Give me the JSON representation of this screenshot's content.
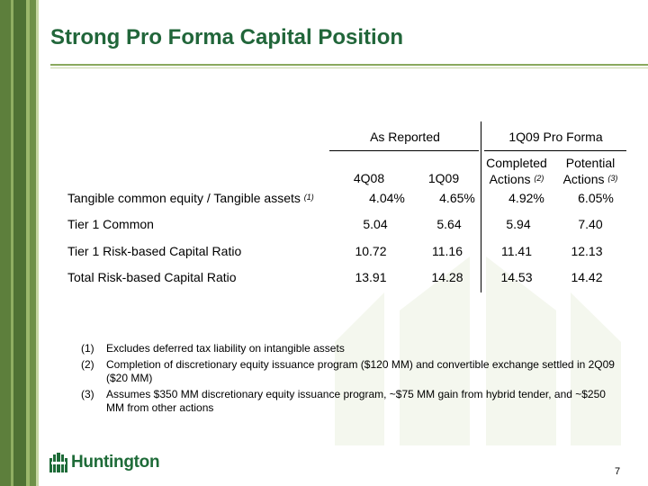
{
  "slide": {
    "title": "Strong Pro Forma Capital Position",
    "page_number": "7"
  },
  "table": {
    "group_headers": [
      "As Reported",
      "1Q09 Pro Forma"
    ],
    "columns": [
      {
        "line1": "",
        "line2": "4Q08",
        "note": ""
      },
      {
        "line1": "",
        "line2": "1Q09",
        "note": ""
      },
      {
        "line1": "Completed",
        "line2": "Actions",
        "note": "(2)"
      },
      {
        "line1": "Potential",
        "line2": "Actions",
        "note": "(3)"
      }
    ],
    "rows": [
      {
        "label": "Tangible common equity / Tangible assets",
        "note": "(1)",
        "values": [
          "4.04%",
          "4.65%",
          "4.92%",
          "6.05%"
        ]
      },
      {
        "label": "Tier 1 Common",
        "note": "",
        "values": [
          "5.04",
          "5.64",
          "5.94",
          "7.40"
        ]
      },
      {
        "label": "Tier 1 Risk-based Capital Ratio",
        "note": "",
        "values": [
          "10.72",
          "11.16",
          "11.41",
          "12.13"
        ]
      },
      {
        "label": "Total Risk-based Capital Ratio",
        "note": "",
        "values": [
          "13.91",
          "14.28",
          "14.53",
          "14.42"
        ]
      }
    ]
  },
  "footnotes": [
    {
      "num": "(1)",
      "text": "Excludes deferred tax liability on intangible assets"
    },
    {
      "num": "(2)",
      "text": "Completion of discretionary equity issuance program ($120 MM) and convertible exchange settled in 2Q09 ($20 MM)"
    },
    {
      "num": "(3)",
      "text": "Assumes $350 MM discretionary equity issuance program, ~$75 MM gain from hybrid tender, and ~$250 MM from other actions"
    }
  ],
  "logo": {
    "icon": "huntington-logo-icon",
    "text": "Huntington"
  },
  "colors": {
    "title": "#21663a",
    "brand_green": "#1e6b38",
    "stripe_dark": "#4f7234",
    "stripe_light": "#9bb86c",
    "watermark": "#f4f7ee"
  }
}
